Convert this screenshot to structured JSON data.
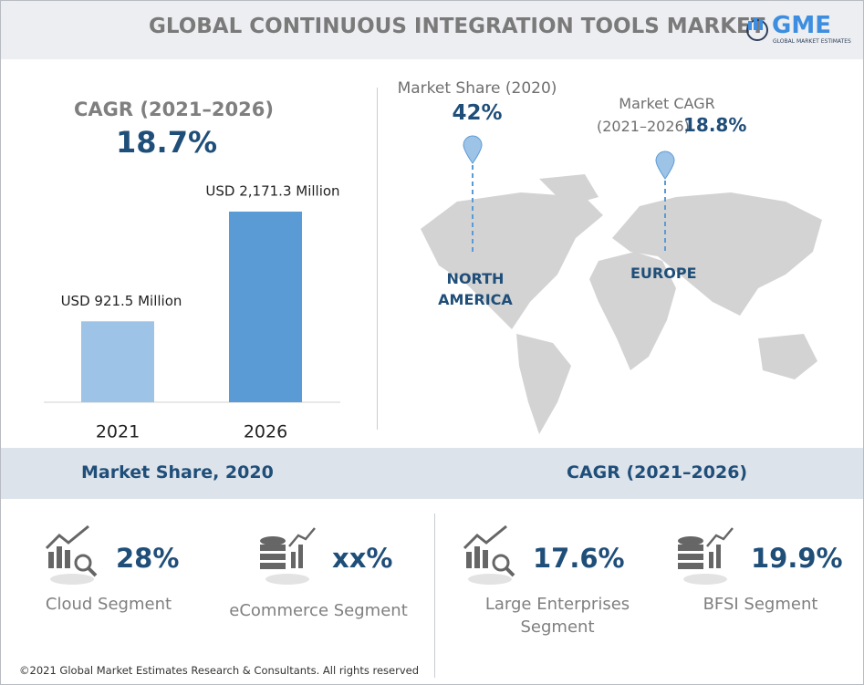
{
  "header": {
    "title": "GLOBAL CONTINUOUS INTEGRATION TOOLS MARKET",
    "logo": "GME",
    "logo_subtitle": "GLOBAL MARKET ESTIMATES"
  },
  "cagr": {
    "label": "CAGR (2021–2026)",
    "value": "18.7%"
  },
  "chart_data": {
    "type": "bar",
    "categories": [
      "2021",
      "2026"
    ],
    "values": [
      921.5,
      2171.3
    ],
    "value_labels": [
      "USD 921.5 Million",
      "USD 2,171.3 Million"
    ],
    "colors": [
      "#9dc3e6",
      "#5b9bd5"
    ],
    "ylim": [
      0,
      2300
    ]
  },
  "map": {
    "markers": [
      {
        "label": "Market Share (2020)",
        "value": "42%",
        "region": "NORTH AMERICA"
      },
      {
        "label": "Market CAGR",
        "label_2": "(2021–2026)",
        "value": "18.8%",
        "region": "EUROPE"
      }
    ]
  },
  "segments": {
    "headings": [
      "Market Share, 2020",
      "CAGR (2021–2026)"
    ],
    "items": [
      {
        "value": "28%",
        "label": "Cloud Segment"
      },
      {
        "value": "xx%",
        "label": "eCommerce Segment"
      },
      {
        "value": "17.6%",
        "label": "Large Enterprises Segment"
      },
      {
        "value": "19.9%",
        "label": "BFSI Segment"
      }
    ]
  },
  "footer": "©2021 Global Market Estimates Research & Consultants. All rights reserved"
}
